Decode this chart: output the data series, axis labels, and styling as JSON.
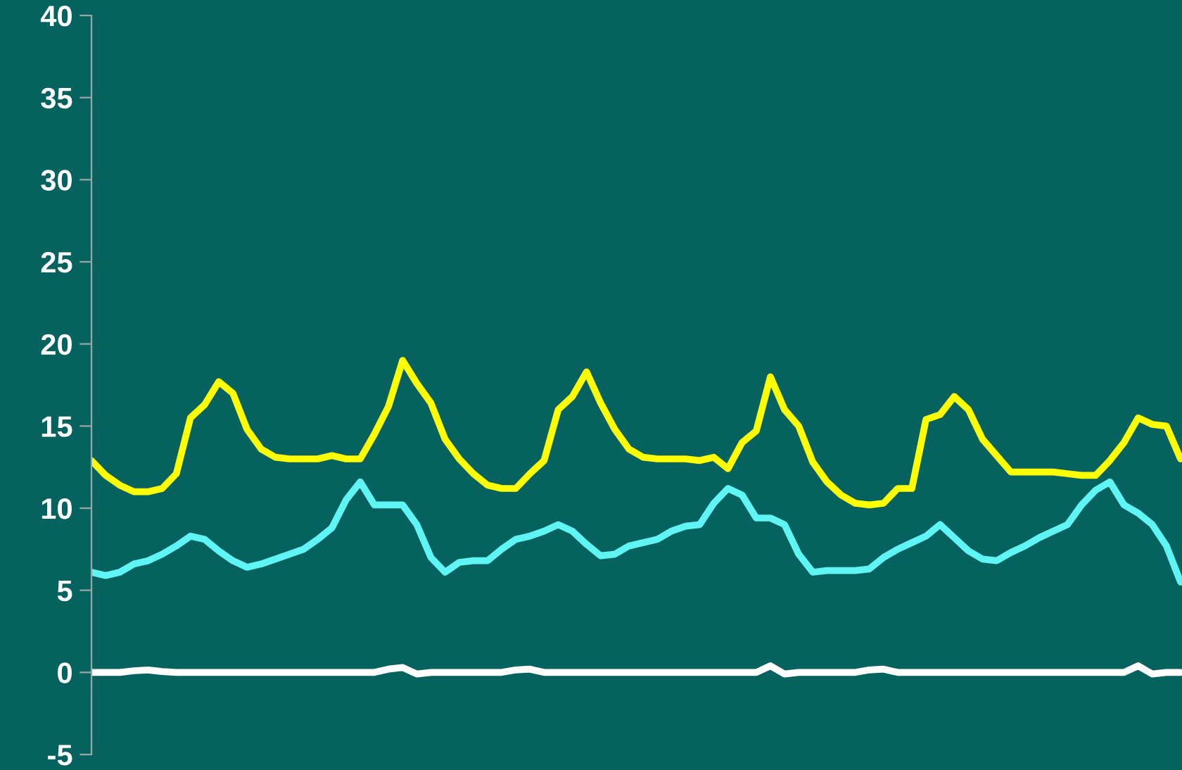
{
  "chart_data": {
    "type": "line",
    "categories": [
      null,
      null,
      null,
      null,
      null,
      null,
      null,
      null,
      null,
      null,
      null,
      null,
      null,
      null,
      null,
      null,
      null,
      null,
      null,
      null,
      null,
      null,
      null,
      null,
      null,
      null,
      null,
      null,
      null,
      null,
      null,
      null,
      null,
      null,
      null,
      null,
      null,
      null,
      null,
      null,
      null,
      null,
      null,
      null,
      null,
      null,
      null,
      null,
      null,
      null,
      null,
      null,
      null,
      null,
      null,
      null,
      null,
      null,
      null,
      null,
      null,
      null,
      null,
      null,
      null,
      null,
      null,
      null,
      null,
      null,
      null,
      null,
      null,
      null,
      null,
      null,
      null,
      null
    ],
    "series": [
      {
        "color": "#ffff00",
        "values": [
          12.9,
          12.0,
          11.4,
          11.0,
          11.0,
          11.2,
          12.1,
          15.5,
          16.3,
          17.7,
          17.0,
          14.8,
          13.6,
          13.1,
          13.0,
          13.0,
          13.0,
          13.2,
          13.0,
          13.0,
          14.5,
          16.2,
          19.0,
          17.6,
          16.4,
          14.2,
          13.0,
          12.1,
          11.4,
          11.2,
          11.2,
          12.1,
          12.9,
          16.0,
          16.8,
          18.3,
          16.4,
          14.8,
          13.6,
          13.1,
          13.0,
          13.0,
          13.0,
          12.9,
          13.1,
          12.4,
          14.0,
          14.7,
          18.0,
          16.0,
          15.0,
          12.8,
          11.6,
          10.8,
          10.3,
          10.2,
          10.3,
          11.2,
          11.2,
          15.4,
          15.7,
          16.8,
          16.0,
          14.2,
          13.2,
          12.2,
          12.2,
          12.2,
          12.2,
          12.1,
          12.0,
          12.0,
          12.9,
          14.0,
          15.5,
          15.1,
          15.0,
          13.0
        ]
      },
      {
        "color": "#5ff5f5",
        "values": [
          6.1,
          5.9,
          6.1,
          6.6,
          6.8,
          7.2,
          7.7,
          8.3,
          8.1,
          7.4,
          6.8,
          6.4,
          6.6,
          6.9,
          7.2,
          7.5,
          8.1,
          8.8,
          10.5,
          11.6,
          10.2,
          10.2,
          10.2,
          9.0,
          7.0,
          6.1,
          6.7,
          6.8,
          6.8,
          7.5,
          8.1,
          8.3,
          8.6,
          9.0,
          8.6,
          7.8,
          7.1,
          7.2,
          7.7,
          7.9,
          8.1,
          8.6,
          8.9,
          9.0,
          10.3,
          11.2,
          10.8,
          9.4,
          9.4,
          9.0,
          7.2,
          6.1,
          6.2,
          6.2,
          6.2,
          6.3,
          7.0,
          7.5,
          7.9,
          8.3,
          9.0,
          8.2,
          7.4,
          6.9,
          6.8,
          7.3,
          7.7,
          8.2,
          8.6,
          9.0,
          10.2,
          11.1,
          11.6,
          10.2,
          9.7,
          9.0,
          7.7,
          5.5
        ]
      },
      {
        "color": "#ffffff",
        "values": [
          0,
          0,
          0,
          0.1,
          0.15,
          0.05,
          0,
          0,
          0,
          0,
          0,
          0,
          0,
          0,
          0,
          0,
          0,
          0,
          0,
          0,
          0,
          0.2,
          0.3,
          -0.1,
          0,
          0,
          0,
          0,
          0,
          0,
          0.15,
          0.2,
          0,
          0,
          0,
          0,
          0,
          0,
          0,
          0,
          0,
          0,
          0,
          0,
          0,
          0,
          0,
          0,
          0.4,
          -0.1,
          0,
          0,
          0,
          0,
          0,
          0.15,
          0.2,
          0,
          0,
          0,
          0,
          0,
          0,
          0,
          0,
          0,
          0,
          0,
          0,
          0,
          0,
          0,
          0,
          0,
          0.4,
          -0.1,
          0,
          0
        ]
      }
    ],
    "ylim": [
      -5,
      40
    ],
    "yticks": [
      -5,
      0,
      5,
      10,
      15,
      20,
      25,
      30,
      35,
      40
    ],
    "tick_labels": "y"
  }
}
